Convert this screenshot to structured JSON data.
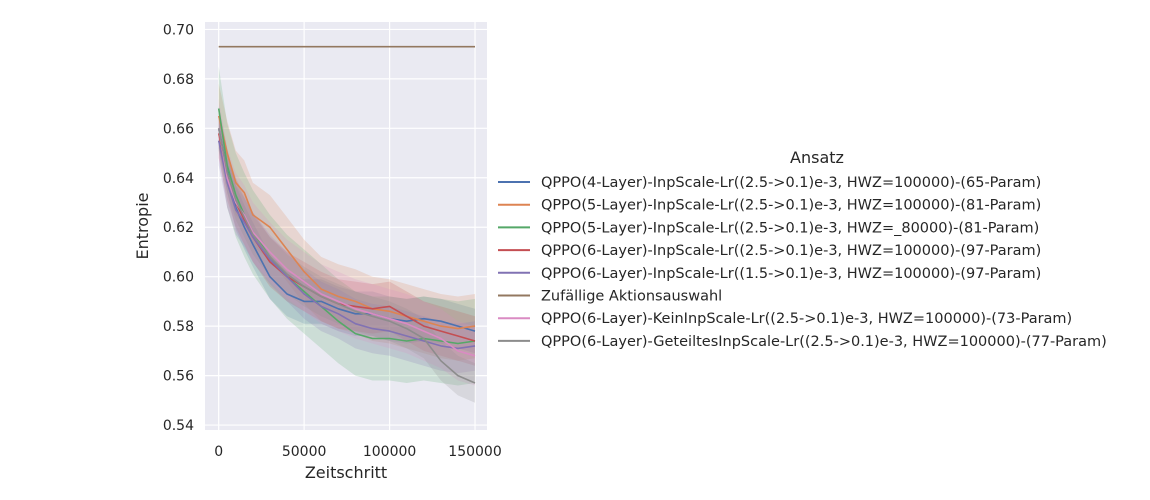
{
  "chart_data": {
    "type": "line",
    "xlabel": "Zeitschritt",
    "ylabel": "Entropie",
    "xlim": [
      -8000,
      157000
    ],
    "ylim": [
      0.538,
      0.703
    ],
    "xticks": [
      0,
      50000,
      100000,
      150000
    ],
    "yticks": [
      0.54,
      0.56,
      0.58,
      0.6,
      0.62,
      0.64,
      0.66,
      0.68,
      0.7
    ],
    "xtick_labels": [
      "0",
      "50000",
      "100000",
      "150000"
    ],
    "ytick_labels": [
      "0.54",
      "0.56",
      "0.58",
      "0.60",
      "0.62",
      "0.64",
      "0.66",
      "0.68",
      "0.70"
    ],
    "grid": true,
    "background": "#eaeaf2",
    "legend_title": "Ansatz",
    "legend_position": "right",
    "x": [
      0,
      5000,
      10000,
      15000,
      20000,
      30000,
      40000,
      50000,
      60000,
      70000,
      80000,
      90000,
      100000,
      110000,
      120000,
      130000,
      140000,
      150000
    ],
    "series": [
      {
        "name": "QPPO(4-Layer)-InpScale-Lr((2.5->0.1)e-3, HWZ=100000)-(65-Param)",
        "color": "#4c72b0",
        "values": [
          0.66,
          0.643,
          0.628,
          0.62,
          0.613,
          0.6,
          0.593,
          0.59,
          0.59,
          0.587,
          0.585,
          0.585,
          0.583,
          0.582,
          0.583,
          0.582,
          0.58,
          0.578
        ],
        "band": 0.009
      },
      {
        "name": "QPPO(5-Layer)-InpScale-Lr((2.5->0.1)e-3, HWZ=100000)-(81-Param)",
        "color": "#dd8452",
        "values": [
          0.665,
          0.65,
          0.638,
          0.634,
          0.625,
          0.62,
          0.611,
          0.602,
          0.595,
          0.592,
          0.59,
          0.587,
          0.586,
          0.584,
          0.582,
          0.58,
          0.579,
          0.58
        ],
        "band": 0.013
      },
      {
        "name": "QPPO(5-Layer)-InpScale-Lr((2.5->0.1)e-3, HWZ=_80000)-(81-Param)",
        "color": "#55a868",
        "values": [
          0.668,
          0.645,
          0.633,
          0.625,
          0.618,
          0.608,
          0.6,
          0.594,
          0.588,
          0.582,
          0.577,
          0.575,
          0.575,
          0.574,
          0.575,
          0.574,
          0.573,
          0.574
        ],
        "band": 0.017
      },
      {
        "name": "QPPO(6-Layer)-InpScale-Lr((2.5->0.1)e-3, HWZ=100000)-(97-Param)",
        "color": "#c44e52",
        "values": [
          0.658,
          0.641,
          0.63,
          0.623,
          0.616,
          0.606,
          0.6,
          0.596,
          0.592,
          0.589,
          0.588,
          0.587,
          0.588,
          0.584,
          0.58,
          0.578,
          0.576,
          0.574
        ],
        "band": 0.01
      },
      {
        "name": "QPPO(6-Layer)-InpScale-Lr((1.5->0.1)e-3, HWZ=100000)-(97-Param)",
        "color": "#8172b3",
        "values": [
          0.655,
          0.638,
          0.627,
          0.622,
          0.616,
          0.607,
          0.6,
          0.593,
          0.588,
          0.585,
          0.581,
          0.579,
          0.578,
          0.576,
          0.574,
          0.572,
          0.571,
          0.572
        ],
        "band": 0.01
      },
      {
        "name": "Zufällige Aktionsauswahl",
        "color": "#937860",
        "values": [
          0.693,
          0.693,
          0.693,
          0.693,
          0.693,
          0.693,
          0.693,
          0.693,
          0.693,
          0.693,
          0.693,
          0.693,
          0.693,
          0.693,
          0.693,
          0.693,
          0.693,
          0.693
        ],
        "band": 0.0
      },
      {
        "name": "QPPO(6-Layer)-KeinInpScale-Lr((2.5->0.1)e-3, HWZ=100000)-(73-Param)",
        "color": "#da8bc3",
        "values": [
          0.66,
          0.64,
          0.63,
          0.625,
          0.618,
          0.61,
          0.603,
          0.598,
          0.593,
          0.59,
          0.587,
          0.585,
          0.583,
          0.581,
          0.578,
          0.575,
          0.57,
          0.568
        ],
        "band": 0.012
      },
      {
        "name": "QPPO(6-Layer)-GeteiltesInpScale-Lr((2.5->0.1)e-3, HWZ=100000)-(77-Param)",
        "color": "#8c8c8c",
        "values": [
          0.66,
          0.642,
          0.631,
          0.624,
          0.617,
          0.608,
          0.601,
          0.596,
          0.592,
          0.589,
          0.586,
          0.584,
          0.582,
          0.579,
          0.575,
          0.566,
          0.56,
          0.557
        ],
        "band": 0.008
      }
    ]
  }
}
